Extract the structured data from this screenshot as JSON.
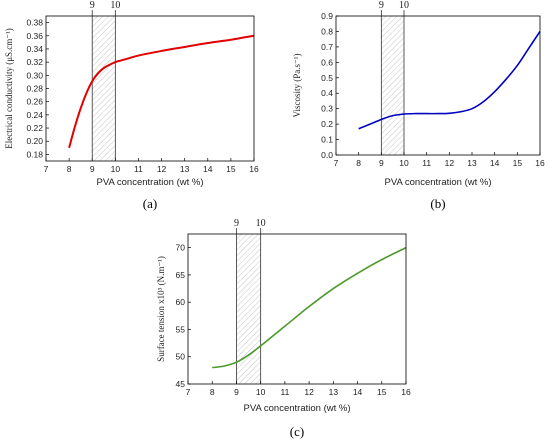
{
  "chart_data": [
    {
      "type": "line",
      "panel_label": "(a)",
      "xlabel": "PVA concentration (wt %)",
      "ylabel": "Electrical conductivity (μS.cm⁻¹)",
      "xlim": [
        7,
        16
      ],
      "ylim": [
        0.17,
        0.39
      ],
      "xticks": [
        "7",
        "8",
        "9",
        "10",
        "11",
        "12",
        "13",
        "14",
        "15",
        "16"
      ],
      "yticks": [
        "0.18",
        "0.20",
        "0.22",
        "0.24",
        "0.26",
        "0.28",
        "0.30",
        "0.32",
        "0.34",
        "0.36",
        "0.38"
      ],
      "shaded_region": [
        9,
        10
      ],
      "shaded_labels": [
        "9",
        "10"
      ],
      "color": "#e00000",
      "x": [
        8,
        8.25,
        8.5,
        8.75,
        9,
        9.25,
        9.5,
        9.75,
        10,
        10.5,
        11,
        12,
        13,
        14,
        15,
        16
      ],
      "y": [
        0.19,
        0.222,
        0.25,
        0.273,
        0.291,
        0.303,
        0.311,
        0.316,
        0.32,
        0.325,
        0.33,
        0.337,
        0.343,
        0.349,
        0.354,
        0.36
      ]
    },
    {
      "type": "line",
      "panel_label": "(b)",
      "xlabel": "PVA concentration (wt %)",
      "ylabel": "Viscosity (Pa.s⁻¹)",
      "xlim": [
        7,
        16
      ],
      "ylim": [
        0,
        0.9
      ],
      "xticks": [
        "7",
        "8",
        "9",
        "10",
        "11",
        "12",
        "13",
        "14",
        "15",
        "16"
      ],
      "yticks": [
        "0.0",
        "0.1",
        "0.2",
        "0.3",
        "0.4",
        "0.5",
        "0.6",
        "0.7",
        "0.8",
        "0.9"
      ],
      "shaded_region": [
        9,
        10
      ],
      "shaded_labels": [
        "9",
        "10"
      ],
      "color": "#0000c0",
      "x": [
        8,
        8.5,
        9,
        9.5,
        10,
        10.5,
        11,
        11.5,
        12,
        12.5,
        13,
        13.5,
        14,
        14.5,
        15,
        15.5,
        16
      ],
      "y": [
        0.17,
        0.2,
        0.23,
        0.255,
        0.265,
        0.268,
        0.268,
        0.268,
        0.27,
        0.28,
        0.3,
        0.345,
        0.41,
        0.49,
        0.58,
        0.69,
        0.8
      ]
    },
    {
      "type": "line",
      "panel_label": "(c)",
      "xlabel": "PVA concentration (wt %)",
      "ylabel": "Surface tension x10³ (N.m⁻¹)",
      "xlim": [
        7,
        16
      ],
      "ylim": [
        45,
        72.5
      ],
      "xticks": [
        "7",
        "8",
        "9",
        "10",
        "11",
        "12",
        "13",
        "14",
        "15",
        "16"
      ],
      "yticks": [
        "45",
        "50",
        "55",
        "60",
        "65",
        "70"
      ],
      "shaded_region": [
        9,
        10
      ],
      "shaded_labels": [
        "9",
        "10"
      ],
      "color": "#4a9a2a",
      "x": [
        8,
        8.5,
        9,
        9.5,
        10,
        11,
        12,
        13,
        14,
        15,
        16
      ],
      "y": [
        48,
        48.3,
        49,
        50.3,
        52,
        55.6,
        59.2,
        62.5,
        65.3,
        67.8,
        70
      ]
    }
  ]
}
